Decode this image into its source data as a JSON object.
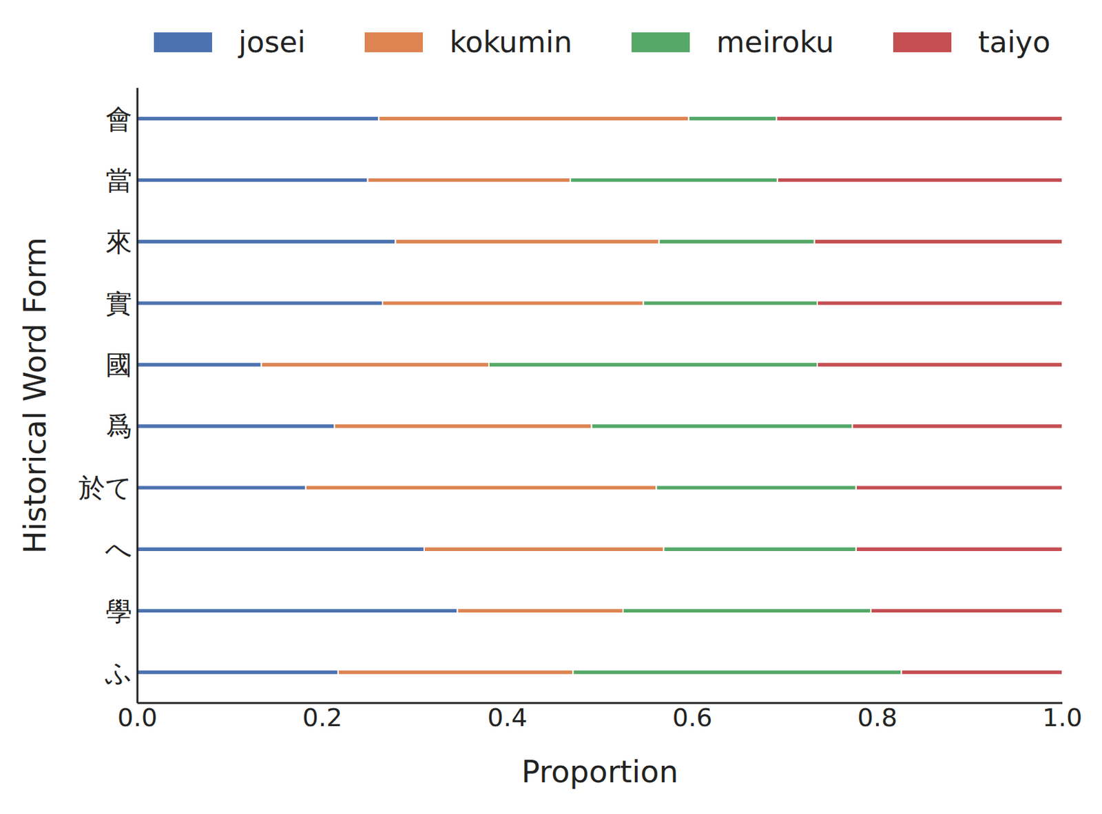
{
  "chart_data": {
    "type": "bar",
    "orientation": "horizontal",
    "stacked": true,
    "xlabel": "Proportion",
    "ylabel": "Historical Word Form",
    "categories": [
      "會",
      "當",
      "來",
      "實",
      "國",
      "爲",
      "於て",
      "へ",
      "學",
      "ふ"
    ],
    "series": [
      {
        "name": "josei",
        "color": "#4c72b0",
        "values": [
          0.261,
          0.249,
          0.279,
          0.265,
          0.134,
          0.213,
          0.182,
          0.31,
          0.346,
          0.217
        ]
      },
      {
        "name": "kokumin",
        "color": "#dd8452",
        "values": [
          0.335,
          0.219,
          0.285,
          0.282,
          0.246,
          0.278,
          0.379,
          0.259,
          0.179,
          0.254
        ]
      },
      {
        "name": "meiroku",
        "color": "#55a868",
        "values": [
          0.095,
          0.224,
          0.168,
          0.188,
          0.355,
          0.282,
          0.216,
          0.208,
          0.268,
          0.355
        ]
      },
      {
        "name": "taiyo",
        "color": "#c44e52",
        "values": [
          0.309,
          0.308,
          0.268,
          0.265,
          0.265,
          0.227,
          0.223,
          0.223,
          0.207,
          0.174
        ]
      }
    ],
    "xlim": [
      0,
      1
    ],
    "xticks": [
      {
        "value": 0,
        "label": "0.0"
      },
      0.2,
      0.4,
      0.6,
      0.8,
      {
        "value": 1,
        "label": "1.0"
      }
    ],
    "grid": false,
    "legend": "top"
  }
}
